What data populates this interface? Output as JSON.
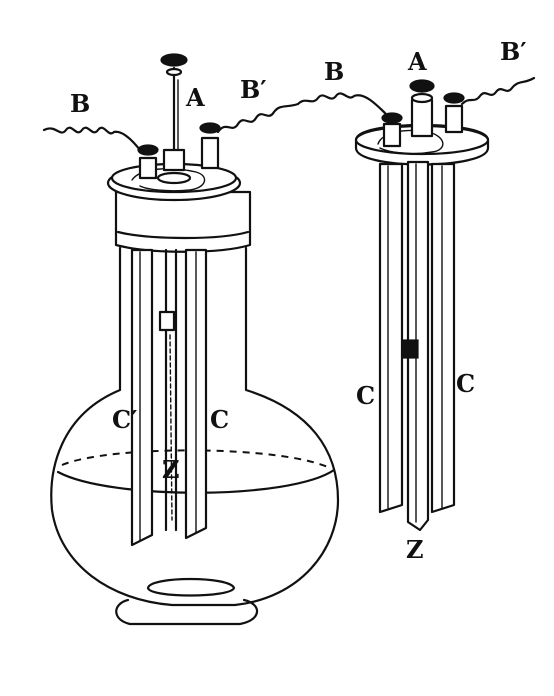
{
  "labels": {
    "left_A": "A",
    "left_B": "B",
    "left_B_prime": "B′",
    "left_C": "C",
    "left_C_prime": "C′",
    "left_Z": "Z",
    "right_A": "A",
    "right_B": "B",
    "right_B_prime": "B′",
    "right_C_left": "C",
    "right_C_right": "C",
    "right_Z": "Z"
  },
  "colors": {
    "ink": "#111111",
    "paper": "#ffffff"
  }
}
